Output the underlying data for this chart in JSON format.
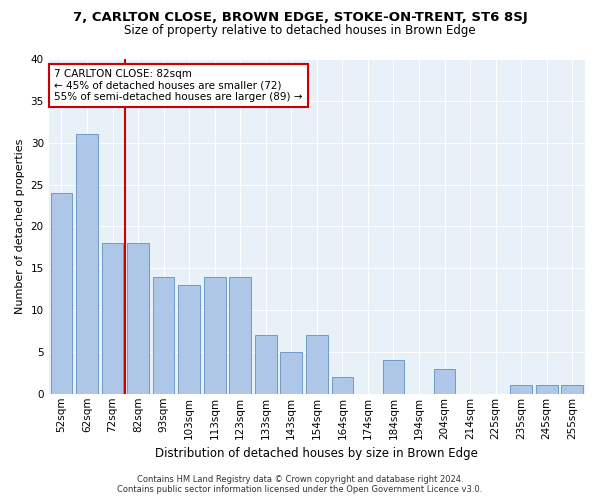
{
  "title": "7, CARLTON CLOSE, BROWN EDGE, STOKE-ON-TRENT, ST6 8SJ",
  "subtitle": "Size of property relative to detached houses in Brown Edge",
  "xlabel": "Distribution of detached houses by size in Brown Edge",
  "ylabel": "Number of detached properties",
  "categories": [
    "52sqm",
    "62sqm",
    "72sqm",
    "82sqm",
    "93sqm",
    "103sqm",
    "113sqm",
    "123sqm",
    "133sqm",
    "143sqm",
    "154sqm",
    "164sqm",
    "174sqm",
    "184sqm",
    "194sqm",
    "204sqm",
    "214sqm",
    "225sqm",
    "235sqm",
    "245sqm",
    "255sqm"
  ],
  "values": [
    24,
    31,
    18,
    18,
    14,
    13,
    14,
    14,
    7,
    5,
    7,
    2,
    0,
    4,
    0,
    3,
    0,
    0,
    1,
    1,
    1
  ],
  "bar_color": "#aec6e8",
  "bar_edgecolor": "#6090c0",
  "bg_color": "#e8f0f8",
  "grid_color": "#ffffff",
  "vline_color": "#cc0000",
  "annotation_text": "7 CARLTON CLOSE: 82sqm\n← 45% of detached houses are smaller (72)\n55% of semi-detached houses are larger (89) →",
  "annotation_box_edgecolor": "#cc0000",
  "footer_line1": "Contains HM Land Registry data © Crown copyright and database right 2024.",
  "footer_line2": "Contains public sector information licensed under the Open Government Licence v3.0.",
  "ylim": [
    0,
    40
  ],
  "yticks": [
    0,
    5,
    10,
    15,
    20,
    25,
    30,
    35,
    40
  ],
  "title_fontsize": 9.5,
  "subtitle_fontsize": 8.5,
  "xlabel_fontsize": 8.5,
  "ylabel_fontsize": 8,
  "tick_fontsize": 7.5,
  "annotation_fontsize": 7.5,
  "footer_fontsize": 6
}
